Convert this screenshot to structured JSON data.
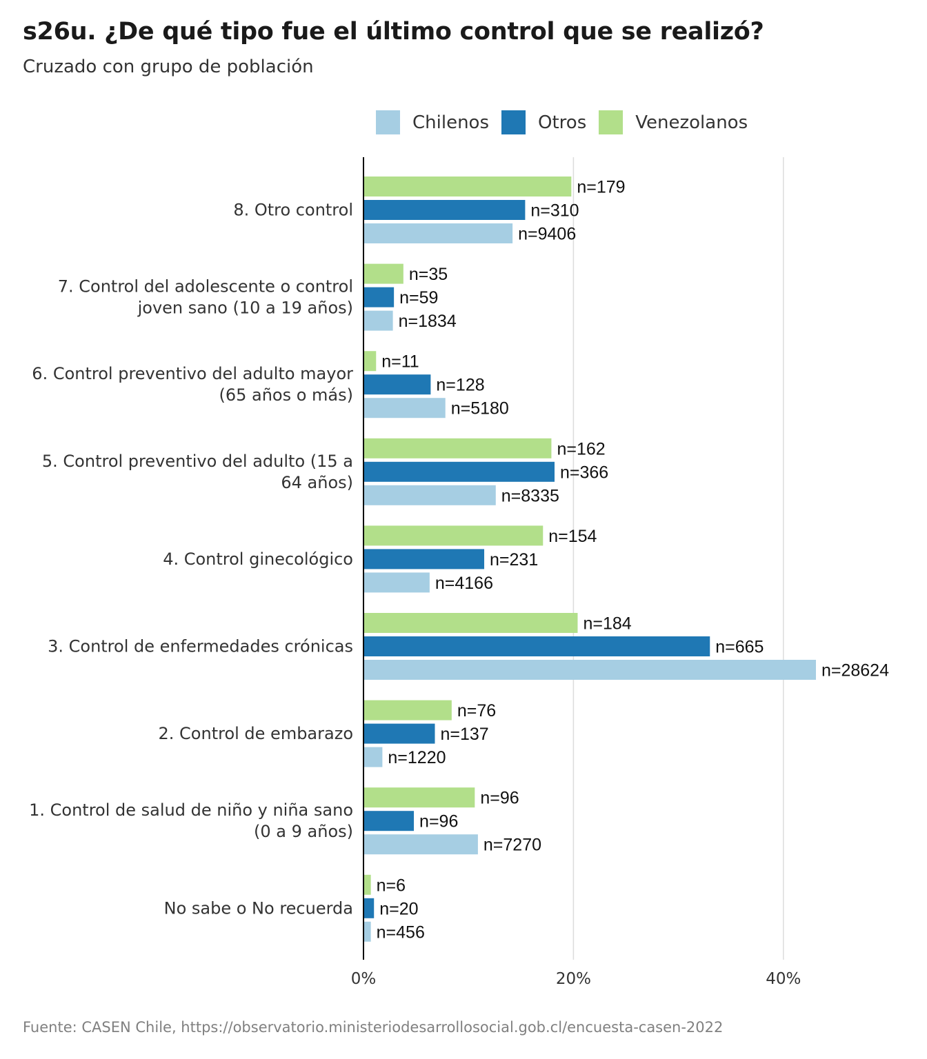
{
  "title": "s26u. ¿De qué tipo fue el último control que se realizó?",
  "subtitle": "Cruzado con grupo de población",
  "source": "Fuente: CASEN Chile, https://observatorio.ministeriodesarrollosocial.gob.cl/encuesta-casen-2022",
  "legend": [
    {
      "label": "Chilenos",
      "color": "#a6cee3"
    },
    {
      "label": "Otros",
      "color": "#1f78b4"
    },
    {
      "label": "Venezolanos",
      "color": "#b2df8a"
    }
  ],
  "chart_data": {
    "type": "bar",
    "orientation": "horizontal",
    "title": "s26u. ¿De qué tipo fue el último control que se realizó?",
    "subtitle": "Cruzado con grupo de población",
    "xlabel": "",
    "ylabel": "",
    "xlim": [
      0,
      45
    ],
    "xticks": [
      0,
      20,
      40
    ],
    "xtick_labels": [
      "0%",
      "20%",
      "40%"
    ],
    "grid": true,
    "legend_position": "top",
    "categories": [
      {
        "lines": [
          "8. Otro control"
        ]
      },
      {
        "lines": [
          "7. Control del adolescente o control",
          "joven sano (10 a 19 años)"
        ]
      },
      {
        "lines": [
          "6. Control preventivo del adulto mayor",
          "(65 años o más)"
        ]
      },
      {
        "lines": [
          "5. Control preventivo del adulto (15 a",
          "64 años)"
        ]
      },
      {
        "lines": [
          "4. Control ginecológico"
        ]
      },
      {
        "lines": [
          "3. Control de enfermedades crónicas"
        ]
      },
      {
        "lines": [
          "2. Control de embarazo"
        ]
      },
      {
        "lines": [
          "1. Control de salud de niño y niña sano",
          "(0 a 9 años)"
        ]
      },
      {
        "lines": [
          "No sabe o No recuerda"
        ]
      }
    ],
    "series": [
      {
        "name": "Venezolanos",
        "color": "#b2df8a",
        "values": [
          19.8,
          3.8,
          1.2,
          17.9,
          17.1,
          20.4,
          8.4,
          10.6,
          0.7
        ],
        "labels": [
          "n=179",
          "n=35",
          "n=11",
          "n=162",
          "n=154",
          "n=184",
          "n=76",
          "n=96",
          "n=6"
        ]
      },
      {
        "name": "Otros",
        "color": "#1f78b4",
        "values": [
          15.4,
          2.9,
          6.4,
          18.2,
          11.5,
          33.0,
          6.8,
          4.8,
          1.0
        ],
        "labels": [
          "n=310",
          "n=59",
          "n=128",
          "n=366",
          "n=231",
          "n=665",
          "n=137",
          "n=96",
          "n=20"
        ]
      },
      {
        "name": "Chilenos",
        "color": "#a6cee3",
        "values": [
          14.2,
          2.8,
          7.8,
          12.6,
          6.3,
          43.1,
          1.8,
          10.9,
          0.7
        ],
        "labels": [
          "n=9406",
          "n=1834",
          "n=5180",
          "n=8335",
          "n=4166",
          "n=28624",
          "n=1220",
          "n=7270",
          "n=456"
        ]
      }
    ]
  }
}
